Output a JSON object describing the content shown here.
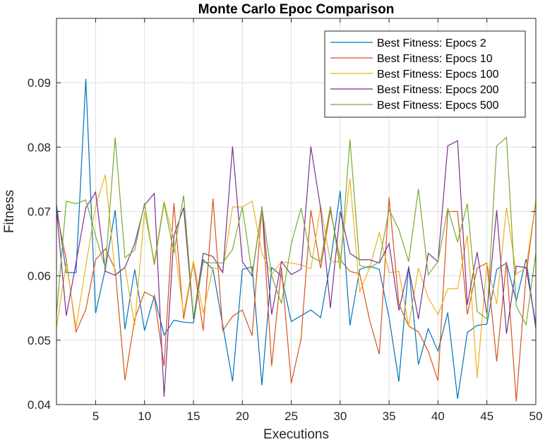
{
  "chart_data": {
    "type": "line",
    "title": "Monte Carlo Epoc Comparison",
    "xlabel": "Executions",
    "ylabel": "Fitness",
    "xlim": [
      1,
      50
    ],
    "ylim": [
      0.04,
      0.1
    ],
    "xticks": [
      5,
      10,
      15,
      20,
      25,
      30,
      35,
      40,
      45,
      50
    ],
    "yticks": [
      0.04,
      0.05,
      0.06,
      0.07,
      0.08,
      0.09
    ],
    "xtick_labels": [
      "5",
      "10",
      "15",
      "20",
      "25",
      "30",
      "35",
      "40",
      "45",
      "50"
    ],
    "ytick_labels": [
      "0.04",
      "0.05",
      "0.06",
      "0.07",
      "0.08",
      "0.09"
    ],
    "grid": true,
    "legend_position": "top-right",
    "x": [
      1,
      2,
      3,
      4,
      5,
      6,
      7,
      8,
      9,
      10,
      11,
      12,
      13,
      14,
      15,
      16,
      17,
      18,
      19,
      20,
      21,
      22,
      23,
      24,
      25,
      26,
      27,
      28,
      29,
      30,
      31,
      32,
      33,
      34,
      35,
      36,
      37,
      38,
      39,
      40,
      41,
      42,
      43,
      44,
      45,
      46,
      47,
      48,
      49,
      50
    ],
    "series": [
      {
        "name": "Best Fitness: Epocs 2",
        "color": "#0072BD",
        "values": [
          0.071,
          0.0605,
          0.0605,
          0.0906,
          0.0542,
          0.0611,
          0.0702,
          0.0517,
          0.061,
          0.0515,
          0.0569,
          0.0508,
          0.0531,
          0.0528,
          0.0527,
          0.0625,
          0.061,
          0.0523,
          0.0436,
          0.061,
          0.0614,
          0.043,
          0.0613,
          0.06,
          0.0529,
          0.0538,
          0.0547,
          0.0535,
          0.062,
          0.0732,
          0.0523,
          0.061,
          0.0615,
          0.061,
          0.0535,
          0.0436,
          0.0615,
          0.0462,
          0.0518,
          0.0483,
          0.0543,
          0.0409,
          0.0512,
          0.0523,
          0.0525,
          0.061,
          0.062,
          0.0561,
          0.0626,
          0.0518
        ]
      },
      {
        "name": "Best Fitness: Epocs 10",
        "color": "#D95319",
        "values": [
          0.0701,
          0.0625,
          0.0513,
          0.0548,
          0.0625,
          0.0642,
          0.061,
          0.0438,
          0.0533,
          0.0575,
          0.0567,
          0.046,
          0.0713,
          0.0533,
          0.0621,
          0.0515,
          0.072,
          0.0515,
          0.0537,
          0.0547,
          0.0507,
          0.0708,
          0.046,
          0.0613,
          0.0433,
          0.0502,
          0.0702,
          0.0612,
          0.0702,
          0.0625,
          0.0607,
          0.0603,
          0.0532,
          0.0478,
          0.0722,
          0.0556,
          0.0522,
          0.0513,
          0.0483,
          0.0437,
          0.07,
          0.07,
          0.054,
          0.0612,
          0.062,
          0.0467,
          0.0622,
          0.0405,
          0.06,
          0.0717
        ]
      },
      {
        "name": "Best Fitness: Epocs 100",
        "color": "#EDB120",
        "values": [
          0.052,
          0.062,
          0.052,
          0.0615,
          0.0708,
          0.0757,
          0.0602,
          0.0613,
          0.0523,
          0.07,
          0.0622,
          0.0716,
          0.0655,
          0.054,
          0.0623,
          0.0542,
          0.0613,
          0.0608,
          0.0707,
          0.0707,
          0.0716,
          0.0635,
          0.0602,
          0.0622,
          0.062,
          0.0617,
          0.0611,
          0.0708,
          0.0622,
          0.0622,
          0.0751,
          0.0575,
          0.0612,
          0.0667,
          0.0605,
          0.0607,
          0.0522,
          0.0612,
          0.0566,
          0.054,
          0.058,
          0.058,
          0.0663,
          0.0441,
          0.062,
          0.0556,
          0.0706,
          0.0603,
          0.0612,
          0.0717
        ]
      },
      {
        "name": "Best Fitness: Epocs 200",
        "color": "#7E2F8E",
        "values": [
          0.0703,
          0.0538,
          0.062,
          0.0706,
          0.073,
          0.0607,
          0.0601,
          0.0613,
          0.065,
          0.071,
          0.0728,
          0.0412,
          0.0662,
          0.0706,
          0.0533,
          0.0635,
          0.063,
          0.0605,
          0.0801,
          0.0622,
          0.06,
          0.0706,
          0.054,
          0.0622,
          0.0602,
          0.061,
          0.0801,
          0.0705,
          0.055,
          0.07,
          0.0635,
          0.0625,
          0.0625,
          0.062,
          0.065,
          0.0546,
          0.0613,
          0.0533,
          0.0635,
          0.0622,
          0.0802,
          0.081,
          0.0555,
          0.0637,
          0.054,
          0.0702,
          0.051,
          0.0615,
          0.0613,
          0.0525
        ]
      },
      {
        "name": "Best Fitness: Epocs 500",
        "color": "#77AC30",
        "values": [
          0.054,
          0.0716,
          0.0712,
          0.0718,
          0.0662,
          0.0612,
          0.0815,
          0.0628,
          0.064,
          0.0713,
          0.0617,
          0.0713,
          0.0636,
          0.0725,
          0.0536,
          0.0621,
          0.062,
          0.062,
          0.0641,
          0.0707,
          0.0602,
          0.0706,
          0.06,
          0.0557,
          0.065,
          0.0705,
          0.063,
          0.0622,
          0.0708,
          0.061,
          0.0812,
          0.0616,
          0.0612,
          0.0622,
          0.0703,
          0.0672,
          0.0622,
          0.0735,
          0.0602,
          0.0622,
          0.0705,
          0.0653,
          0.0712,
          0.0545,
          0.0533,
          0.0802,
          0.0815,
          0.0553,
          0.0524,
          0.0635
        ]
      }
    ]
  }
}
